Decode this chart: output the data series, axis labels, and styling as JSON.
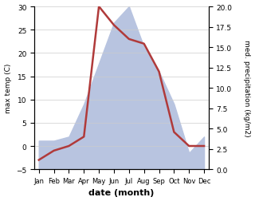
{
  "months": [
    "Jan",
    "Feb",
    "Mar",
    "Apr",
    "May",
    "Jun",
    "Jul",
    "Aug",
    "Sep",
    "Oct",
    "Nov",
    "Dec"
  ],
  "temperature": [
    -3,
    -1,
    0,
    2,
    30,
    26,
    23,
    22,
    16,
    3,
    0,
    0
  ],
  "precipitation": [
    3.5,
    3.5,
    4,
    8,
    13,
    18,
    20,
    15,
    12,
    8,
    2,
    4
  ],
  "temp_color": "#b03a3a",
  "precip_fill_color": "#b8c4e0",
  "ylabel_left": "max temp (C)",
  "ylabel_right": "med. precipitation (kg/m2)",
  "xlabel": "date (month)",
  "ylim_left": [
    -5,
    30
  ],
  "ylim_right": [
    0,
    20
  ],
  "bg_color": "#ffffff",
  "grid_color": "#cccccc"
}
